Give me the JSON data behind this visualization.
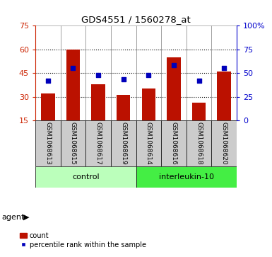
{
  "title": "GDS4551 / 1560278_at",
  "samples": [
    "GSM1068613",
    "GSM1068615",
    "GSM1068617",
    "GSM1068619",
    "GSM1068614",
    "GSM1068616",
    "GSM1068618",
    "GSM1068620"
  ],
  "groups": [
    "control",
    "control",
    "control",
    "control",
    "interleukin-10",
    "interleukin-10",
    "interleukin-10",
    "interleukin-10"
  ],
  "counts": [
    32,
    60,
    38,
    31,
    35,
    55,
    26,
    46
  ],
  "percentiles": [
    42,
    55,
    48,
    43,
    48,
    58,
    42,
    55
  ],
  "left_ylim": [
    15,
    75
  ],
  "left_yticks": [
    15,
    30,
    45,
    60,
    75
  ],
  "right_ylim": [
    0,
    100
  ],
  "right_yticks": [
    0,
    25,
    50,
    75,
    100
  ],
  "right_yticklabels": [
    "0",
    "25",
    "50",
    "75",
    "100%"
  ],
  "bar_color": "#bb1100",
  "dot_color": "#0000bb",
  "control_color": "#bbffbb",
  "interleukin_color": "#44ee44",
  "sample_bg_color": "#cccccc",
  "plot_bg": "#ffffff",
  "left_axis_color": "#cc2200",
  "right_axis_color": "#0000cc",
  "bar_width": 0.55
}
